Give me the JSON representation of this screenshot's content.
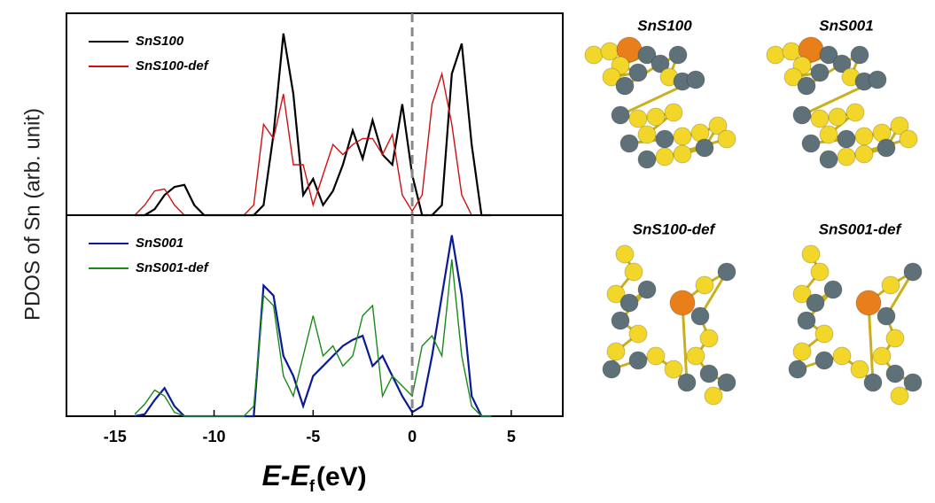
{
  "chart_data": [
    {
      "type": "line",
      "legend": "upper left",
      "x": [
        -14,
        -13.5,
        -13,
        -12.5,
        -12,
        -11.5,
        -11,
        -10.5,
        -10,
        -9.5,
        -9,
        -8.5,
        -8,
        -7.5,
        -7,
        -6.5,
        -6,
        -5.5,
        -5,
        -4.5,
        -4,
        -3.5,
        -3,
        -2.5,
        -2,
        -1.5,
        -1,
        -0.5,
        0,
        0.5,
        1,
        1.5,
        2,
        2.5,
        3,
        3.5,
        4
      ],
      "series": [
        {
          "name": "SnS100",
          "color": "#000000",
          "values": [
            0,
            0,
            0.03,
            0.1,
            0.14,
            0.15,
            0.05,
            0,
            0,
            0,
            0,
            0,
            0,
            0.05,
            0.4,
            0.9,
            0.6,
            0.1,
            0.18,
            0.05,
            0.12,
            0.25,
            0.42,
            0.28,
            0.47,
            0.3,
            0.25,
            0.55,
            0.2,
            0,
            0,
            0.05,
            0.7,
            0.85,
            0.35,
            0,
            0
          ]
        },
        {
          "name": "SnS100-def",
          "color": "#d01010",
          "values": [
            0,
            0.05,
            0.12,
            0.13,
            0.05,
            0,
            0,
            0,
            0,
            0,
            0,
            0,
            0.05,
            0.45,
            0.38,
            0.6,
            0.25,
            0.25,
            0.05,
            0.2,
            0.35,
            0.3,
            0.35,
            0.38,
            0.38,
            0.3,
            0.4,
            0.1,
            0.02,
            0.1,
            0.55,
            0.7,
            0.45,
            0.1,
            0,
            0,
            0
          ]
        }
      ],
      "xlim": [
        -17.45,
        7.6
      ],
      "ylim": [
        0,
        1
      ],
      "vline": 0
    },
    {
      "type": "line",
      "legend": "upper left",
      "x": [
        -14,
        -13.5,
        -13,
        -12.5,
        -12,
        -11.5,
        -11,
        -10.5,
        -10,
        -9.5,
        -9,
        -8.5,
        -8,
        -7.5,
        -7,
        -6.5,
        -6,
        -5.5,
        -5,
        -4.5,
        -4,
        -3.5,
        -3,
        -2.5,
        -2,
        -1.5,
        -1,
        -0.5,
        0,
        0.5,
        1,
        1.5,
        2,
        2.5,
        3,
        3.5,
        4
      ],
      "series": [
        {
          "name": "SnS001",
          "color": "#0a1a96",
          "values": [
            0,
            0.01,
            0.08,
            0.14,
            0.05,
            0,
            0,
            0,
            0,
            0,
            0,
            0,
            0,
            0.65,
            0.6,
            0.3,
            0.2,
            0.05,
            0.2,
            0.25,
            0.3,
            0.35,
            0.38,
            0.4,
            0.25,
            0.3,
            0.2,
            0.1,
            0.02,
            0.05,
            0.3,
            0.6,
            0.9,
            0.6,
            0.1,
            0,
            0
          ]
        },
        {
          "name": "SnS001-def",
          "color": "#1a8a1a",
          "values": [
            0.01,
            0.06,
            0.13,
            0.1,
            0.02,
            0,
            0,
            0,
            0,
            0,
            0,
            0,
            0.05,
            0.6,
            0.55,
            0.2,
            0.1,
            0.3,
            0.5,
            0.3,
            0.35,
            0.25,
            0.3,
            0.5,
            0.55,
            0.1,
            0.2,
            0.15,
            0.1,
            0.35,
            0.4,
            0.3,
            0.78,
            0.3,
            0.05,
            0,
            0
          ]
        }
      ],
      "xlim": [
        -17.45,
        7.6
      ],
      "ylim": [
        0,
        1
      ],
      "vline": 0,
      "xticks": [
        -15,
        -10,
        -5,
        0,
        5
      ]
    }
  ],
  "y_label": "PDOS of Sn (arb. unit)",
  "x_label": {
    "main": "E-E",
    "sub": "f",
    "unit": "(eV)"
  },
  "structures": [
    "SnS100",
    "SnS001",
    "SnS100-def",
    "SnS001-def"
  ]
}
